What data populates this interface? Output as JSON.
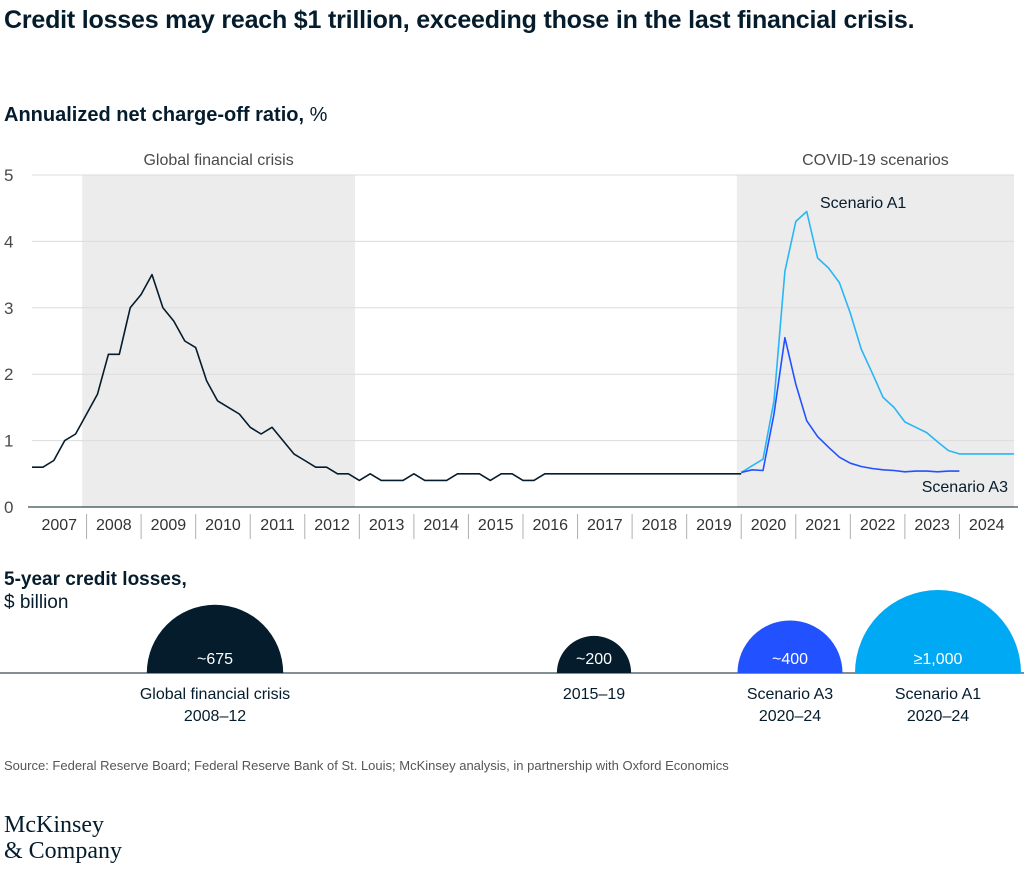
{
  "title": "Credit losses may reach $1 trillion, exceeding those in the last financial crisis.",
  "subtitle_bold": "Annualized net charge-off ratio,",
  "subtitle_unit": " %",
  "chart_data": [
    {
      "type": "line",
      "ylim": [
        0,
        5
      ],
      "yticks": [
        0,
        1,
        2,
        3,
        4,
        5
      ],
      "xlim": [
        2006.93,
        2024.93
      ],
      "xtick_labels": [
        "2007",
        "2008",
        "2009",
        "2010",
        "2011",
        "2012",
        "2013",
        "2014",
        "2015",
        "2016",
        "2017",
        "2018",
        "2019",
        "2020",
        "2021",
        "2022",
        "2023",
        "2024"
      ],
      "grid": true,
      "shaded_regions": [
        {
          "label": "Global financial crisis",
          "from": 2007.85,
          "to": 2012.85
        },
        {
          "label": "COVID-19 scenarios",
          "from": 2019.85,
          "to": 2024.93
        }
      ],
      "series": [
        {
          "name": "",
          "color": "#051c2c",
          "x": [
            2006.93,
            2007.13,
            2007.33,
            2007.53,
            2007.73,
            2007.93,
            2008.13,
            2008.33,
            2008.53,
            2008.73,
            2008.93,
            2009.13,
            2009.33,
            2009.53,
            2009.73,
            2009.93,
            2010.13,
            2010.33,
            2010.53,
            2010.73,
            2010.93,
            2011.13,
            2011.33,
            2011.53,
            2011.73,
            2011.93,
            2012.13,
            2012.33,
            2012.53,
            2012.73,
            2012.93,
            2013.13,
            2013.33,
            2013.53,
            2013.73,
            2013.93,
            2014.13,
            2014.33,
            2014.53,
            2014.73,
            2014.93,
            2015.13,
            2015.33,
            2015.53,
            2015.73,
            2015.93,
            2016.13,
            2016.33,
            2016.53,
            2016.73,
            2016.93,
            2017.13,
            2017.33,
            2017.53,
            2017.73,
            2017.93,
            2018.13,
            2018.33,
            2018.53,
            2018.73,
            2018.93,
            2019.13,
            2019.33,
            2019.53,
            2019.73,
            2019.93
          ],
          "values": [
            0.6,
            0.6,
            0.7,
            1.0,
            1.1,
            1.4,
            1.7,
            2.3,
            2.3,
            3.0,
            3.2,
            3.5,
            3.0,
            2.8,
            2.5,
            2.4,
            1.9,
            1.6,
            1.5,
            1.4,
            1.2,
            1.1,
            1.2,
            1.0,
            0.8,
            0.7,
            0.6,
            0.6,
            0.5,
            0.5,
            0.4,
            0.5,
            0.4,
            0.4,
            0.4,
            0.5,
            0.4,
            0.4,
            0.4,
            0.5,
            0.5,
            0.5,
            0.4,
            0.5,
            0.5,
            0.4,
            0.4,
            0.5,
            0.5,
            0.5,
            0.5,
            0.5,
            0.5,
            0.5,
            0.5,
            0.5,
            0.5,
            0.5,
            0.5,
            0.5,
            0.5,
            0.5,
            0.5,
            0.5,
            0.5,
            0.5
          ]
        },
        {
          "name": "Scenario A1",
          "color": "#29b6f6",
          "x": [
            2019.93,
            2020.13,
            2020.33,
            2020.53,
            2020.73,
            2020.93,
            2021.13,
            2021.33,
            2021.53,
            2021.73,
            2021.93,
            2022.13,
            2022.33,
            2022.53,
            2022.73,
            2022.93,
            2023.13,
            2023.33,
            2023.53,
            2023.73,
            2023.93,
            2024.13,
            2024.33,
            2024.53,
            2024.73,
            2024.93
          ],
          "values": [
            0.52,
            0.62,
            0.72,
            1.6,
            3.55,
            4.3,
            4.45,
            3.75,
            3.6,
            3.38,
            2.92,
            2.38,
            2.02,
            1.65,
            1.5,
            1.28,
            1.2,
            1.12,
            0.98,
            0.85,
            0.8,
            0.8,
            0.8,
            0.8,
            0.8,
            0.8
          ]
        },
        {
          "name": "Scenario A3",
          "color": "#2251ff",
          "x": [
            2019.93,
            2020.13,
            2020.33,
            2020.53,
            2020.73,
            2020.93,
            2021.13,
            2021.33,
            2021.53,
            2021.73,
            2021.93,
            2022.13,
            2022.33,
            2022.53,
            2022.73,
            2022.93,
            2023.13,
            2023.33,
            2023.53,
            2023.73,
            2023.93
          ],
          "values": [
            0.52,
            0.56,
            0.55,
            1.4,
            2.55,
            1.85,
            1.3,
            1.06,
            0.9,
            0.75,
            0.66,
            0.61,
            0.58,
            0.56,
            0.55,
            0.53,
            0.54,
            0.54,
            0.53,
            0.54,
            0.54
          ]
        }
      ]
    },
    {
      "type": "bubble",
      "title": "5-year credit losses,",
      "unit": "$ billion",
      "items": [
        {
          "label_line1": "Global financial crisis",
          "label_line2": "2008–12",
          "value_label": "~675",
          "value": 675,
          "color": "#051c2c"
        },
        {
          "label_line1": "2015–19",
          "label_line2": "",
          "value_label": "~200",
          "value": 200,
          "color": "#051c2c"
        },
        {
          "label_line1": "Scenario A3",
          "label_line2": "2020–24",
          "value_label": "~400",
          "value": 400,
          "color": "#2251ff"
        },
        {
          "label_line1": "Scenario A1",
          "label_line2": "2020–24",
          "value_label": "≥1,000",
          "value": 1000,
          "color": "#00a9f4"
        }
      ]
    }
  ],
  "source": "Source: Federal Reserve Board; Federal Reserve Bank of St. Louis; McKinsey analysis, in partnership with Oxford Economics",
  "logo": {
    "line1": "McKinsey",
    "line2": "& Company"
  }
}
